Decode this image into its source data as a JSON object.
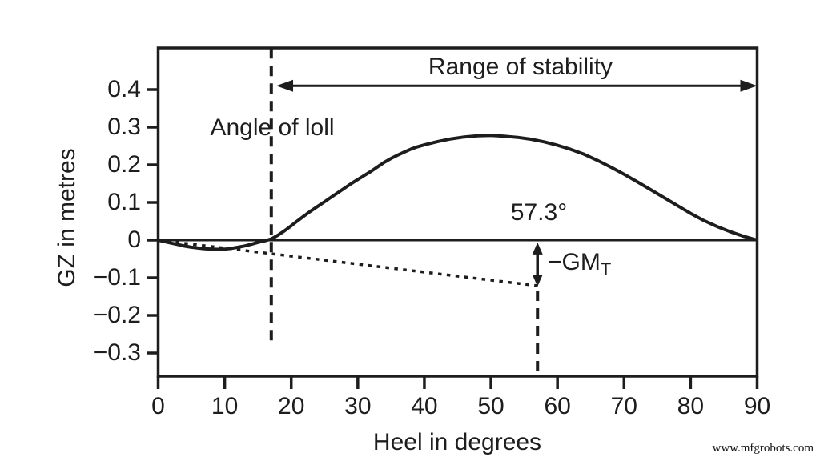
{
  "figure": {
    "watermark": "www.mfgrobots.com"
  },
  "chart_data": {
    "type": "line",
    "title": "",
    "xlabel": "Heel in degrees",
    "ylabel": "GZ in metres",
    "xlim": [
      0,
      90
    ],
    "ylim": [
      -0.36,
      0.51
    ],
    "grid": false,
    "ink_color": "#1d1d1d",
    "x_ticks": [
      0,
      10,
      20,
      30,
      40,
      50,
      60,
      70,
      80,
      90
    ],
    "x_tick_labels": [
      "0",
      "10",
      "20",
      "30",
      "40",
      "50",
      "60",
      "70",
      "80",
      "90"
    ],
    "y_ticks": [
      0.4,
      0.3,
      0.2,
      0.1,
      0,
      -0.1,
      -0.2,
      -0.3
    ],
    "y_tick_labels": [
      "0.4",
      "0.3",
      "0.2",
      "0.1",
      "0",
      "−0.1",
      "−0.2",
      "−0.3"
    ],
    "series": [
      {
        "name": "GZ curve",
        "style": "solid",
        "points": [
          [
            0,
            0
          ],
          [
            1,
            -0.004
          ],
          [
            2,
            -0.008
          ],
          [
            3,
            -0.012
          ],
          [
            4,
            -0.016
          ],
          [
            5,
            -0.019
          ],
          [
            6,
            -0.021
          ],
          [
            7,
            -0.023
          ],
          [
            8,
            -0.024
          ],
          [
            9,
            -0.0245
          ],
          [
            10,
            -0.024
          ],
          [
            11,
            -0.022
          ],
          [
            12,
            -0.019
          ],
          [
            13,
            -0.0155
          ],
          [
            14,
            -0.011
          ],
          [
            15,
            -0.006
          ],
          [
            16,
            -0.002
          ],
          [
            17,
            0.003
          ],
          [
            18,
            0.013
          ],
          [
            19,
            0.025
          ],
          [
            20,
            0.038
          ],
          [
            21,
            0.052
          ],
          [
            22,
            0.065
          ],
          [
            23,
            0.078
          ],
          [
            24,
            0.09
          ],
          [
            25,
            0.102
          ],
          [
            26,
            0.114
          ],
          [
            27,
            0.126
          ],
          [
            28,
            0.138
          ],
          [
            29,
            0.15
          ],
          [
            30,
            0.161
          ],
          [
            31,
            0.172
          ],
          [
            32,
            0.183
          ],
          [
            33,
            0.195
          ],
          [
            34,
            0.207
          ],
          [
            35,
            0.217
          ],
          [
            36,
            0.226
          ],
          [
            37,
            0.234
          ],
          [
            38,
            0.242
          ],
          [
            39,
            0.248
          ],
          [
            40,
            0.253
          ],
          [
            42,
            0.262
          ],
          [
            44,
            0.269
          ],
          [
            46,
            0.274
          ],
          [
            48,
            0.277
          ],
          [
            50,
            0.278
          ],
          [
            52,
            0.276
          ],
          [
            54,
            0.273
          ],
          [
            56,
            0.268
          ],
          [
            58,
            0.261
          ],
          [
            60,
            0.252
          ],
          [
            62,
            0.241
          ],
          [
            64,
            0.228
          ],
          [
            66,
            0.212
          ],
          [
            68,
            0.194
          ],
          [
            70,
            0.175
          ],
          [
            72,
            0.155
          ],
          [
            74,
            0.134
          ],
          [
            76,
            0.113
          ],
          [
            78,
            0.092
          ],
          [
            80,
            0.071
          ],
          [
            82,
            0.052
          ],
          [
            84,
            0.036
          ],
          [
            86,
            0.022
          ],
          [
            88,
            0.01
          ],
          [
            90,
            0
          ]
        ]
      },
      {
        "name": "GM tangent line",
        "style": "dotted",
        "points": [
          [
            0,
            0
          ],
          [
            57.3,
            -0.122
          ]
        ]
      }
    ],
    "reference_lines": [
      {
        "name": "angle-of-loll-line",
        "style": "dashed",
        "x_deg": 17,
        "from_gz": 0.51,
        "to_gz": -0.272
      },
      {
        "name": "line-57-3-deg",
        "style": "dashed",
        "x_deg": 57,
        "from_gz": -0.134,
        "to_gz": -0.36
      }
    ],
    "annotations": {
      "range_of_stability": {
        "label": "Range of stability",
        "arrow_from_deg": 17.75,
        "arrow_to_deg": 90,
        "arrow_gz": 0.41
      },
      "angle_of_loll": {
        "label": "Angle of loll",
        "x_deg": 17
      },
      "deg_57_3": {
        "label": "57.3°",
        "x_deg": 57.3
      },
      "gm_arrow": {
        "label_main": "−GM",
        "label_sub": "T",
        "x_deg": 57,
        "from_gz": -0.006,
        "to_gz": -0.1235,
        "gm_t_metres": -0.122
      }
    }
  }
}
